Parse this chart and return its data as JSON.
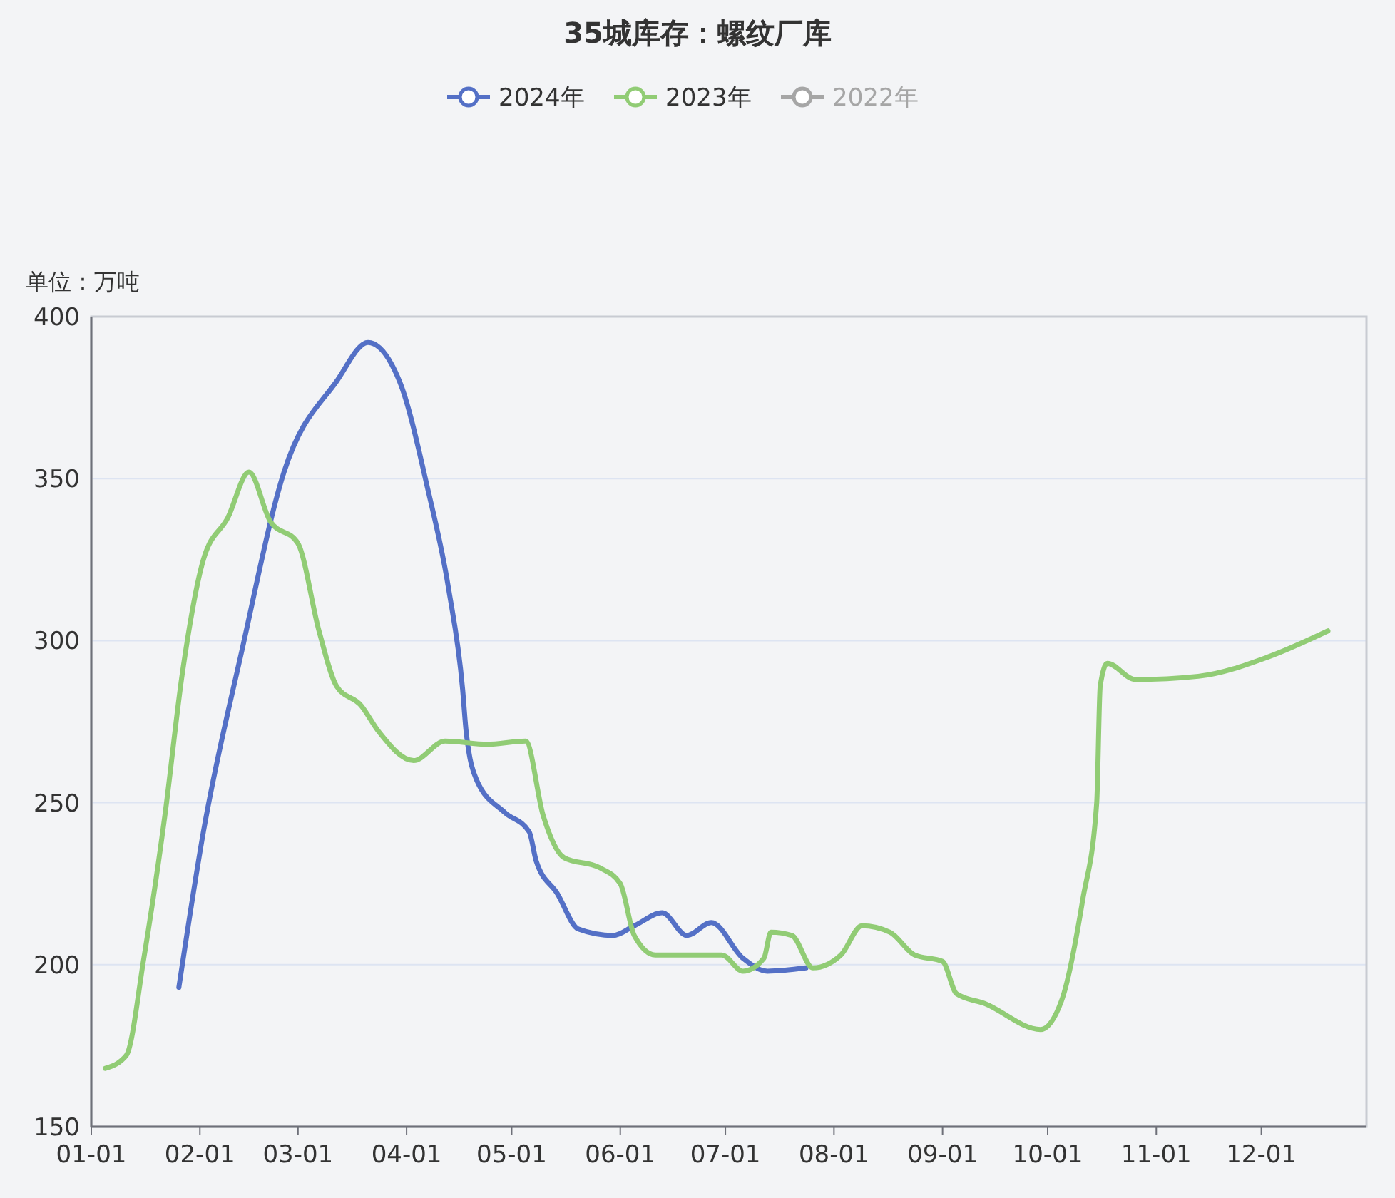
{
  "chart_data": {
    "type": "line",
    "title": "35城库存：螺纹厂库",
    "ylabel": "单位：万吨",
    "xlim": [
      "--01-01",
      "--12-31"
    ],
    "xticks": [
      {
        "value": "--01-01",
        "label": "01-01"
      },
      {
        "value": "--02-01",
        "label": "02-01"
      },
      {
        "value": "--03-01",
        "label": "03-01"
      },
      {
        "value": "--04-01",
        "label": "04-01"
      },
      {
        "value": "--05-01",
        "label": "05-01"
      },
      {
        "value": "--06-01",
        "label": "06-01"
      },
      {
        "value": "--07-01",
        "label": "07-01"
      },
      {
        "value": "--08-01",
        "label": "08-01"
      },
      {
        "value": "--09-01",
        "label": "09-01"
      },
      {
        "value": "--10-01",
        "label": "10-01"
      },
      {
        "value": "--11-01",
        "label": "11-01"
      },
      {
        "value": "--12-01",
        "label": "12-01"
      }
    ],
    "ylim": [
      150,
      400
    ],
    "yticks": [
      150,
      200,
      250,
      300,
      350,
      400
    ],
    "grid": "y",
    "legend": "top",
    "marker": "none",
    "line_style": "solid",
    "series": [
      {
        "name": "2024年",
        "color": "#5470c6",
        "x": [
          "--01-26",
          "--02-02",
          "--02-13",
          "--02-25",
          "--03-12",
          "--03-21",
          "--03-30",
          "--04-07",
          "--04-13",
          "--04-17",
          "--04-18",
          "--04-21",
          "--04-29",
          "--05-06",
          "--05-08",
          "--05-14",
          "--05-20",
          "--05-30",
          "--06-05",
          "--06-13",
          "--06-20",
          "--06-27",
          "--07-06",
          "--07-13",
          "--07-24"
        ],
        "values": [
          193,
          241,
          297,
          352,
          380,
          392,
          380,
          347,
          316,
          285,
          272,
          257,
          247,
          241,
          232,
          222,
          211,
          209,
          212,
          216,
          209,
          213,
          202,
          198,
          199
        ]
      },
      {
        "name": "2023年",
        "color": "#91cc75",
        "x": [
          "--01-05",
          "--01-11",
          "--01-16",
          "--01-22",
          "--01-27",
          "--02-02",
          "--02-09",
          "--02-15",
          "--02-21",
          "--03-01",
          "--03-07",
          "--03-12",
          "--03-19",
          "--03-24",
          "--04-03",
          "--04-12",
          "--04-24",
          "--05-05",
          "--05-10",
          "--05-16",
          "--05-26",
          "--06-01",
          "--06-05",
          "--06-11",
          "--06-30",
          "--07-06",
          "--07-12",
          "--07-14",
          "--07-20",
          "--07-26",
          "--08-03",
          "--08-09",
          "--08-17",
          "--08-24",
          "--09-01",
          "--09-05",
          "--09-13",
          "--09-29",
          "--10-05",
          "--10-11",
          "--10-15",
          "--10-16",
          "--10-18",
          "--10-26",
          "--11-13",
          "--12-03",
          "--12-20"
        ],
        "values": [
          168,
          172,
          202,
          246,
          290,
          325,
          338,
          352,
          337,
          330,
          303,
          286,
          280,
          272,
          263,
          269,
          268,
          269,
          246,
          233,
          230,
          225,
          209,
          203,
          203,
          198,
          202,
          210,
          209,
          199,
          203,
          212,
          210,
          203,
          201,
          191,
          188,
          180,
          189,
          220,
          250,
          286,
          293,
          288,
          289,
          295,
          303
        ]
      },
      {
        "name": "2022年",
        "color": "#a6a6a6"
      }
    ]
  }
}
